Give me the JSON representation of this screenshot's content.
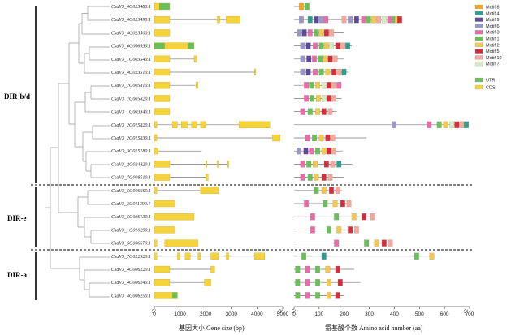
{
  "groups": [
    {
      "label": "DIR-b/d"
    },
    {
      "label": "DIR-e"
    },
    {
      "label": "DIR-a"
    }
  ],
  "genes": [
    {
      "name": "CsaV3_4G023480.1",
      "gene_len": 600,
      "exons": [
        [
          0,
          200,
          "y"
        ],
        [
          200,
          600,
          "g"
        ]
      ],
      "prot_len": 60,
      "motifs": [
        [
          20,
          "8",
          ""
        ],
        [
          42,
          "1",
          ""
        ]
      ]
    },
    {
      "name": "CsaV3_4G023490.1",
      "gene_len": 3350,
      "exons": [
        [
          0,
          600,
          "y"
        ],
        [
          2450,
          2550,
          "y"
        ],
        [
          2800,
          3350,
          "y"
        ]
      ],
      "prot_len": 425,
      "motifs": [
        [
          20,
          "6",
          ""
        ],
        [
          55,
          "4",
          ""
        ],
        [
          80,
          "9",
          ""
        ],
        [
          100,
          "6",
          ""
        ],
        [
          118,
          "3",
          ""
        ],
        [
          190,
          "10",
          ""
        ],
        [
          215,
          "6",
          ""
        ],
        [
          240,
          "9",
          ""
        ],
        [
          268,
          "3",
          ""
        ],
        [
          288,
          "1",
          ""
        ],
        [
          308,
          "2",
          ""
        ],
        [
          328,
          "10",
          ""
        ],
        [
          350,
          "7",
          ""
        ],
        [
          372,
          "3",
          ""
        ],
        [
          392,
          "1",
          ""
        ],
        [
          402,
          "2",
          ""
        ],
        [
          412,
          "5",
          ""
        ]
      ]
    },
    {
      "name": "CsaV3_4G023500.1",
      "gene_len": 600,
      "exons": [
        [
          0,
          600,
          "y"
        ]
      ],
      "prot_len": 200,
      "motifs": [
        [
          12,
          "6",
          ""
        ],
        [
          32,
          "9",
          ""
        ],
        [
          55,
          "3",
          ""
        ],
        [
          80,
          "1",
          ""
        ],
        [
          100,
          "2",
          ""
        ],
        [
          120,
          "5",
          ""
        ],
        [
          140,
          "10",
          ""
        ]
      ]
    },
    {
      "name": "CsaV3_6G006930.1",
      "gene_len": 1550,
      "exons": [
        [
          0,
          400,
          "g"
        ],
        [
          400,
          1300,
          "y"
        ],
        [
          1300,
          1550,
          "g"
        ]
      ],
      "prot_len": 230,
      "motifs": [
        [
          25,
          "6",
          ""
        ],
        [
          48,
          "9",
          ""
        ],
        [
          75,
          "3",
          ""
        ],
        [
          100,
          "1",
          ""
        ],
        [
          120,
          "2",
          ""
        ],
        [
          140,
          "7",
          ""
        ],
        [
          165,
          "5",
          ""
        ],
        [
          185,
          "10",
          ""
        ],
        [
          205,
          "4",
          ""
        ]
      ]
    },
    {
      "name": "CsaV3_1G003540.1",
      "gene_len": 1650,
      "exons": [
        [
          0,
          600,
          "y"
        ],
        [
          1550,
          1650,
          "y"
        ]
      ],
      "prot_len": 200,
      "motifs": [
        [
          25,
          "6",
          ""
        ],
        [
          50,
          "9",
          ""
        ],
        [
          72,
          "3",
          ""
        ],
        [
          95,
          "1",
          ""
        ],
        [
          115,
          "2",
          ""
        ],
        [
          135,
          "5",
          ""
        ],
        [
          155,
          "10",
          ""
        ]
      ]
    },
    {
      "name": "CsaV3_4G023510.1",
      "gene_len": 3950,
      "exons": [
        [
          0,
          600,
          "y"
        ],
        [
          3900,
          3950,
          "y"
        ]
      ],
      "prot_len": 215,
      "motifs": [
        [
          25,
          "6",
          ""
        ],
        [
          48,
          "9",
          ""
        ],
        [
          75,
          "3",
          ""
        ],
        [
          100,
          "1",
          ""
        ],
        [
          125,
          "2",
          ""
        ],
        [
          150,
          "5",
          ""
        ],
        [
          170,
          "10",
          ""
        ],
        [
          190,
          "4",
          ""
        ]
      ]
    },
    {
      "name": "CsaV3_7G005810.1",
      "gene_len": 1700,
      "exons": [
        [
          0,
          600,
          "y"
        ],
        [
          1620,
          1700,
          "y"
        ]
      ],
      "prot_len": 190,
      "motifs": [
        [
          40,
          "3",
          ""
        ],
        [
          60,
          "1",
          ""
        ],
        [
          85,
          "2",
          ""
        ],
        [
          110,
          "7",
          ""
        ],
        [
          130,
          "5",
          ""
        ],
        [
          150,
          "10",
          ""
        ],
        [
          170,
          "3",
          ""
        ]
      ]
    },
    {
      "name": "CsaV3_7G005820.1",
      "gene_len": 600,
      "exons": [
        [
          0,
          600,
          "y"
        ]
      ],
      "prot_len": 190,
      "motifs": [
        [
          40,
          "3",
          ""
        ],
        [
          62,
          "1",
          ""
        ],
        [
          88,
          "2",
          ""
        ],
        [
          110,
          "7",
          ""
        ],
        [
          130,
          "5",
          ""
        ],
        [
          150,
          "10",
          ""
        ]
      ]
    },
    {
      "name": "CsaV3_1G003340.1",
      "gene_len": 600,
      "exons": [
        [
          0,
          600,
          "y"
        ]
      ],
      "prot_len": 170,
      "motifs": [
        [
          25,
          "3",
          ""
        ],
        [
          55,
          "1",
          ""
        ],
        [
          85,
          "2",
          ""
        ],
        [
          110,
          "5",
          ""
        ],
        [
          135,
          "10",
          ""
        ]
      ]
    },
    {
      "name": "CsaV3_2G015820.1",
      "gene_len": 4500,
      "exons": [
        [
          0,
          100,
          "y"
        ],
        [
          700,
          900,
          "y"
        ],
        [
          1050,
          1300,
          "y"
        ],
        [
          1450,
          1650,
          "y"
        ],
        [
          1800,
          2000,
          "y"
        ],
        [
          3300,
          4500,
          "y"
        ]
      ],
      "prot_len": 680,
      "motifs": [
        [
          390,
          "6",
          ""
        ],
        [
          530,
          "3",
          ""
        ],
        [
          570,
          "1",
          ""
        ],
        [
          595,
          "2",
          ""
        ],
        [
          620,
          "7",
          ""
        ],
        [
          640,
          "5",
          ""
        ],
        [
          660,
          "10",
          ""
        ],
        [
          678,
          "4",
          ""
        ]
      ]
    },
    {
      "name": "CsaV3_2G015830.1",
      "gene_len": 4900,
      "exons": [
        [
          0,
          100,
          "y"
        ],
        [
          4600,
          4900,
          "y"
        ]
      ],
      "prot_len": 290,
      "motifs": [
        [
          45,
          "3",
          ""
        ],
        [
          72,
          "1",
          ""
        ],
        [
          100,
          "2",
          ""
        ],
        [
          125,
          "5",
          ""
        ],
        [
          145,
          "10",
          ""
        ]
      ]
    },
    {
      "name": "CsaV3_3G015180.1",
      "gene_len": 1850,
      "exons": [
        [
          0,
          150,
          "y"
        ]
      ],
      "prot_len": 195,
      "motifs": [
        [
          10,
          "6",
          ""
        ],
        [
          38,
          "9",
          ""
        ],
        [
          60,
          "3",
          ""
        ],
        [
          85,
          "1",
          ""
        ],
        [
          110,
          "2",
          ""
        ],
        [
          130,
          "5",
          ""
        ],
        [
          150,
          "10",
          ""
        ]
      ]
    },
    {
      "name": "CsaV3_2G024820.1",
      "gene_len": 2900,
      "exons": [
        [
          0,
          600,
          "y"
        ],
        [
          2000,
          2050,
          "y"
        ],
        [
          2450,
          2500,
          "y"
        ],
        [
          2850,
          2900,
          "y"
        ]
      ],
      "prot_len": 230,
      "motifs": [
        [
          25,
          "3",
          ""
        ],
        [
          50,
          "1",
          ""
        ],
        [
          75,
          "2",
          ""
        ],
        [
          120,
          "5",
          ""
        ],
        [
          145,
          "10",
          ""
        ],
        [
          170,
          "4",
          ""
        ]
      ]
    },
    {
      "name": "CsaV3_7G008510.1",
      "gene_len": 2100,
      "exons": [
        [
          0,
          600,
          "y"
        ],
        [
          2000,
          2100,
          "y"
        ]
      ],
      "prot_len": 200,
      "motifs": [
        [
          25,
          "3",
          ""
        ],
        [
          55,
          "1",
          ""
        ],
        [
          80,
          "2",
          ""
        ],
        [
          110,
          "5",
          ""
        ],
        [
          135,
          "10",
          ""
        ]
      ]
    },
    {
      "name": "CsaV3_5G006660.1",
      "gene_len": 2500,
      "exons": [
        [
          0,
          100,
          "y"
        ],
        [
          1800,
          2500,
          "y"
        ]
      ],
      "prot_len": 190,
      "motifs": [
        [
          80,
          "1",
          ""
        ],
        [
          110,
          "2",
          ""
        ],
        [
          140,
          "5",
          ""
        ],
        [
          165,
          "10",
          ""
        ]
      ]
    },
    {
      "name": "CsaV3_3G011390.1",
      "gene_len": 800,
      "exons": [
        [
          0,
          800,
          "y"
        ]
      ],
      "prot_len": 220,
      "motifs": [
        [
          40,
          "3",
          ""
        ],
        [
          115,
          "1",
          ""
        ],
        [
          155,
          "2",
          ""
        ],
        [
          185,
          "5",
          ""
        ],
        [
          210,
          "10",
          ""
        ]
      ]
    },
    {
      "name": "CsaV3_5G026130.1",
      "gene_len": 1550,
      "exons": [
        [
          0,
          1550,
          "y"
        ]
      ],
      "prot_len": 320,
      "motifs": [
        [
          65,
          "3",
          ""
        ],
        [
          160,
          "1",
          ""
        ],
        [
          230,
          "2",
          ""
        ],
        [
          270,
          "5",
          ""
        ],
        [
          305,
          "10",
          ""
        ]
      ]
    },
    {
      "name": "CsaV3_1G010290.1",
      "gene_len": 800,
      "exons": [
        [
          0,
          800,
          "y"
        ]
      ],
      "prot_len": 250,
      "motifs": [
        [
          65,
          "3",
          ""
        ],
        [
          130,
          "1",
          ""
        ],
        [
          170,
          "2",
          ""
        ],
        [
          215,
          "5",
          ""
        ],
        [
          240,
          "10",
          ""
        ]
      ]
    },
    {
      "name": "CsaV3_5G006670.1",
      "gene_len": 1700,
      "exons": [
        [
          0,
          100,
          "y"
        ],
        [
          400,
          1700,
          "y"
        ]
      ],
      "prot_len": 385,
      "motifs": [
        [
          160,
          "3",
          ""
        ],
        [
          280,
          "1",
          ""
        ],
        [
          320,
          "2",
          ""
        ],
        [
          350,
          "5",
          ""
        ],
        [
          375,
          "10",
          ""
        ]
      ]
    },
    {
      "name": "CsaV3_7G022920.1",
      "gene_len": 4300,
      "exons": [
        [
          0,
          100,
          "y"
        ],
        [
          900,
          1000,
          "y"
        ],
        [
          1200,
          1400,
          "y"
        ],
        [
          1700,
          1800,
          "y"
        ],
        [
          2200,
          2500,
          "y"
        ],
        [
          2800,
          2900,
          "y"
        ],
        [
          3900,
          4300,
          "y"
        ]
      ],
      "prot_len": 560,
      "motifs": [
        [
          30,
          "1",
          ""
        ],
        [
          110,
          "4",
          ""
        ],
        [
          480,
          "1",
          ""
        ],
        [
          540,
          "2",
          ""
        ]
      ]
    },
    {
      "name": "CsaV3_4G006220.1",
      "gene_len": 2350,
      "exons": [
        [
          0,
          600,
          "y"
        ],
        [
          2200,
          2350,
          "y"
        ]
      ],
      "prot_len": 240,
      "motifs": [
        [
          5,
          "1",
          ""
        ],
        [
          45,
          "3",
          ""
        ],
        [
          85,
          "1",
          ""
        ],
        [
          125,
          "2",
          ""
        ],
        [
          165,
          "5",
          ""
        ]
      ]
    },
    {
      "name": "CsaV3_4G006240.1",
      "gene_len": 2200,
      "exons": [
        [
          0,
          600,
          "y"
        ],
        [
          1950,
          2200,
          "y"
        ]
      ],
      "prot_len": 265,
      "motifs": [
        [
          5,
          "1",
          ""
        ],
        [
          45,
          "3",
          ""
        ],
        [
          85,
          "1",
          ""
        ],
        [
          130,
          "2",
          ""
        ],
        [
          175,
          "5",
          ""
        ]
      ]
    },
    {
      "name": "CsaV3_4G006250.1",
      "gene_len": 900,
      "exons": [
        [
          0,
          700,
          "y"
        ],
        [
          700,
          900,
          "g"
        ]
      ],
      "prot_len": 200,
      "motifs": [
        [
          5,
          "1",
          ""
        ],
        [
          45,
          "3",
          ""
        ],
        [
          85,
          "1",
          ""
        ],
        [
          130,
          "2",
          ""
        ],
        [
          165,
          "5",
          ""
        ]
      ]
    }
  ],
  "gene_axis": {
    "label": "基因大小 Gene size (bp)",
    "ticks": [
      "0",
      "1000",
      "2000",
      "3000",
      "4000",
      "5000"
    ],
    "tick_values": [
      0,
      1000,
      2000,
      3000,
      4000,
      5000
    ],
    "end5": "5'",
    "end3": "3'"
  },
  "protein_axis": {
    "label": "氨基酸个数 Amino acid number (aa)",
    "ticks": [
      "0",
      "100",
      "200",
      "300",
      "400",
      "500",
      "600",
      "700"
    ],
    "tick_values": [
      0,
      100,
      200,
      300,
      400,
      500,
      600,
      700
    ],
    "end5": "5'",
    "end3": "3'"
  },
  "motif_legend": [
    {
      "id": "8",
      "label": "Motif 8",
      "color": "#f5a623"
    },
    {
      "id": "4",
      "label": "Motif 4",
      "color": "#2e9e8f"
    },
    {
      "id": "9",
      "label": "Motif 9",
      "color": "#5b4b9a"
    },
    {
      "id": "6",
      "label": "Motif 6",
      "color": "#9a97c4"
    },
    {
      "id": "3",
      "label": "Motif 3",
      "color": "#e86ca5"
    },
    {
      "id": "1",
      "label": "Motif 1",
      "color": "#6bbf59"
    },
    {
      "id": "2",
      "label": "Motif 2",
      "color": "#f2c94c"
    },
    {
      "id": "5",
      "label": "Motif 5",
      "color": "#d62d3c"
    },
    {
      "id": "10",
      "label": "Motif 10",
      "color": "#f4a79a"
    },
    {
      "id": "7",
      "label": "Motif 7",
      "color": "#d8ecc4"
    }
  ],
  "feature_legend": [
    {
      "id": "g",
      "label": "UTR",
      "color": "#6bbf59"
    },
    {
      "id": "y",
      "label": "CDS",
      "color": "#f5d33d"
    }
  ]
}
